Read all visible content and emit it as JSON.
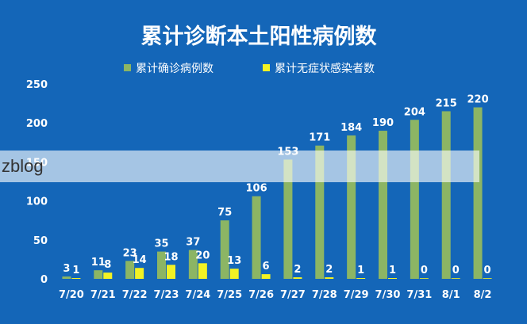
{
  "chart_data": {
    "type": "bar",
    "title": "累计诊断本土阳性病例数",
    "categories": [
      "7/20",
      "7/21",
      "7/22",
      "7/23",
      "7/24",
      "7/25",
      "7/26",
      "7/27",
      "7/28",
      "7/29",
      "7/30",
      "7/31",
      "8/1",
      "8/2"
    ],
    "series": [
      {
        "name": "累计确诊病例数",
        "values": [
          3,
          11,
          23,
          35,
          37,
          75,
          106,
          153,
          171,
          184,
          190,
          204,
          215,
          220
        ],
        "color": "#8cb564"
      },
      {
        "name": "累计无症状感染者数",
        "values": [
          1,
          8,
          14,
          18,
          20,
          13,
          6,
          2,
          2,
          1,
          1,
          0,
          0,
          0
        ],
        "color": "#f2f224"
      }
    ],
    "ylim": [
      0,
      250
    ],
    "yticks": [
      0,
      50,
      100,
      150,
      200,
      250
    ],
    "legend": "top",
    "grid": false
  },
  "watermark": {
    "text": "zblog"
  }
}
